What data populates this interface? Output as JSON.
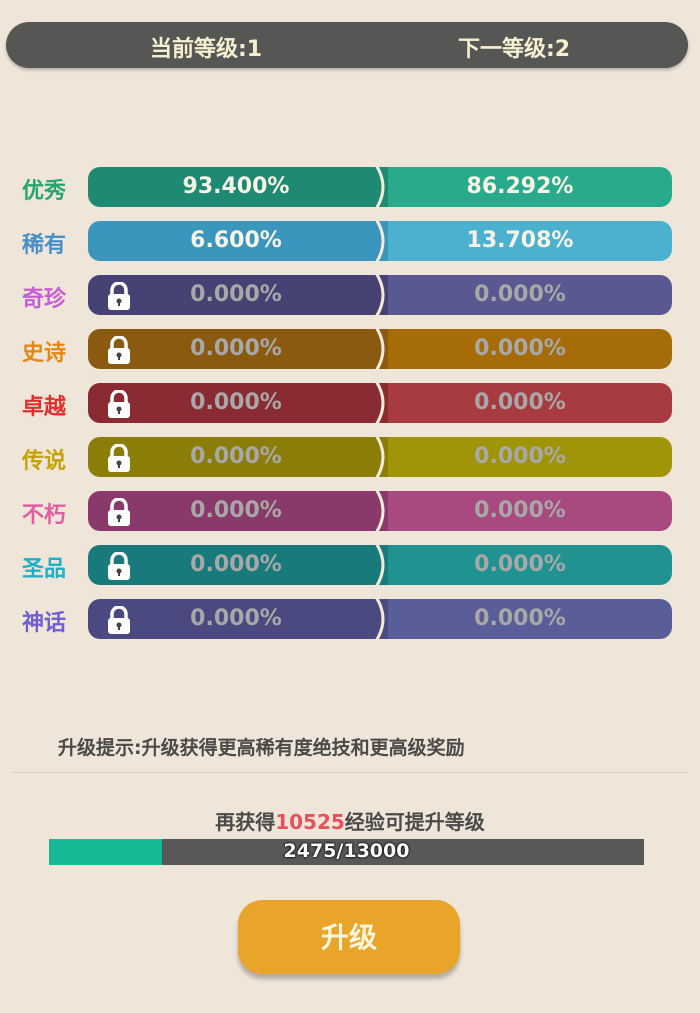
{
  "header": {
    "current_level": "当前等级:1",
    "next_level": "下一等级:2"
  },
  "rarities": [
    {
      "name": "优秀",
      "color": "#27a56f",
      "current": "93.400%",
      "next": "86.292%",
      "locked": false,
      "left_bg": "#1e8a74",
      "right_bg": "#2aaa8c"
    },
    {
      "name": "稀有",
      "color": "#4a8fc6",
      "current": "6.600%",
      "next": "13.708%",
      "locked": false,
      "left_bg": "#3a96bc",
      "right_bg": "#4cb0cf"
    },
    {
      "name": "奇珍",
      "color": "#c45ed2",
      "current": "0.000%",
      "next": "0.000%",
      "locked": true,
      "left_bg": "#474274",
      "right_bg": "#5a5890"
    },
    {
      "name": "史诗",
      "color": "#e5880e",
      "current": "0.000%",
      "next": "0.000%",
      "locked": true,
      "left_bg": "#8a5a10",
      "right_bg": "#a66c08"
    },
    {
      "name": "卓越",
      "color": "#e0302e",
      "current": "0.000%",
      "next": "0.000%",
      "locked": true,
      "left_bg": "#8a2a32",
      "right_bg": "#a83a42"
    },
    {
      "name": "传说",
      "color": "#c4a400",
      "current": "0.000%",
      "next": "0.000%",
      "locked": true,
      "left_bg": "#8a7e08",
      "right_bg": "#a09508"
    },
    {
      "name": "不朽",
      "color": "#e25ea2",
      "current": "0.000%",
      "next": "0.000%",
      "locked": true,
      "left_bg": "#8a3a6a",
      "right_bg": "#a84a80"
    },
    {
      "name": "圣品",
      "color": "#1eb0c4",
      "current": "0.000%",
      "next": "0.000%",
      "locked": true,
      "left_bg": "#187a7a",
      "right_bg": "#209292"
    },
    {
      "name": "神话",
      "color": "#6e60d2",
      "current": "0.000%",
      "next": "0.000%",
      "locked": true,
      "left_bg": "#4a4a80",
      "right_bg": "#5a5e98"
    }
  ],
  "hint": "升级提示:升级获得更高稀有度绝技和更高级奖励",
  "exp": {
    "prefix": "再获得",
    "needed": "10525",
    "suffix": "经验可提升等级",
    "current": 2475,
    "max": 13000,
    "text": "2475/13000"
  },
  "upgrade_button": "升级"
}
